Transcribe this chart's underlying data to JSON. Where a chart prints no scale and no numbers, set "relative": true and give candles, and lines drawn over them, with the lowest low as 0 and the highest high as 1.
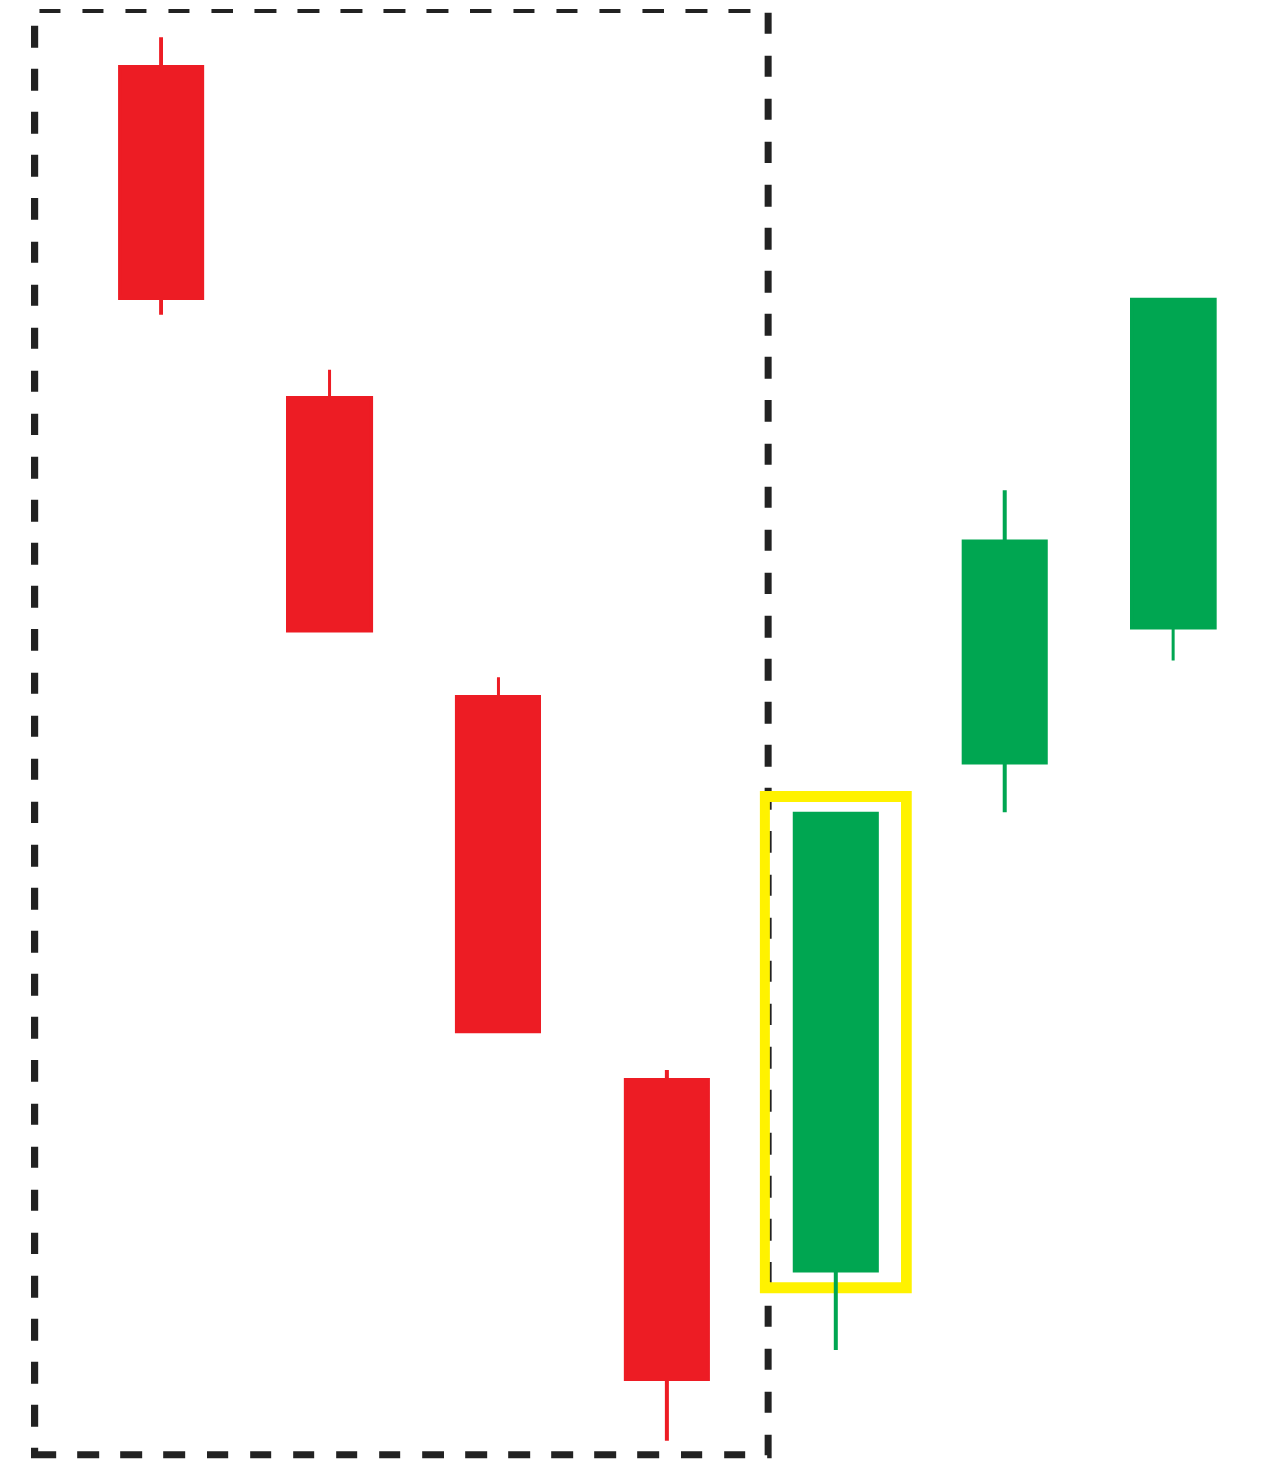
{
  "chart_data": {
    "type": "candlestick",
    "relative": true,
    "categories": [
      null,
      null,
      null,
      null,
      null,
      null,
      null
    ],
    "ohlc": [
      [
        0.979,
        1.0,
        0.802,
        0.814
      ],
      [
        0.743,
        0.763,
        0.577,
        0.577
      ],
      [
        0.53,
        0.544,
        0.292,
        0.292
      ],
      [
        0.257,
        0.264,
        0.0,
        0.044
      ],
      [
        0.121,
        0.447,
        0.065,
        0.447
      ],
      [
        0.483,
        0.677,
        0.448,
        0.641
      ],
      [
        0.579,
        0.813,
        0.556,
        0.813
      ]
    ],
    "colors": [
      "#ed1c24",
      "#ed1c24",
      "#ed1c24",
      "#ed1c24",
      "#00a651",
      "#00a651",
      "#00a651"
    ],
    "grid": false,
    "legend": false
  }
}
